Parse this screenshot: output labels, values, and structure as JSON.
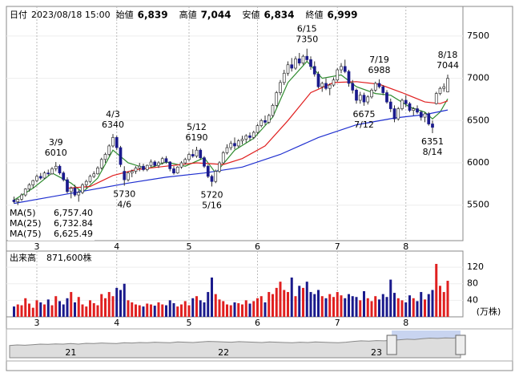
{
  "chart_data": {
    "type": "candlestick",
    "header": {
      "date_label": "日付",
      "date": "2023/08/18 15:00",
      "quotes": [
        {
          "name": "始値",
          "value": 6839,
          "value_label": "6,839",
          "color": "#000000"
        },
        {
          "name": "高値",
          "value": 7044,
          "value_label": "7,044",
          "color": "#e00000"
        },
        {
          "name": "安値",
          "value": 6834,
          "value_label": "6,834",
          "color": "#008000"
        },
        {
          "name": "終値",
          "value": 6999,
          "value_label": "6,999",
          "color": "#000000"
        }
      ]
    },
    "ylim": [
      5080,
      7850
    ],
    "yticks": [
      5500,
      6000,
      6500,
      7000,
      7500
    ],
    "xlim": [
      -2,
      118
    ],
    "xticks": [
      {
        "value": 6,
        "label": "3"
      },
      {
        "value": 27,
        "label": "4"
      },
      {
        "value": 46,
        "label": "5"
      },
      {
        "value": 64,
        "label": "6"
      },
      {
        "value": 85,
        "label": "7"
      },
      {
        "value": 103,
        "label": "8"
      }
    ],
    "up_color": "#ffffff",
    "down_color": "#1a1a8c",
    "wick_color": "#333333",
    "candles": [
      [
        5560,
        5600,
        5520,
        5540
      ],
      [
        5540,
        5580,
        5500,
        5570
      ],
      [
        5570,
        5640,
        5550,
        5620
      ],
      [
        5620,
        5700,
        5600,
        5690
      ],
      [
        5690,
        5760,
        5660,
        5740
      ],
      [
        5740,
        5800,
        5700,
        5790
      ],
      [
        5790,
        5860,
        5770,
        5840
      ],
      [
        5840,
        5880,
        5800,
        5820
      ],
      [
        5820,
        5900,
        5810,
        5880
      ],
      [
        5880,
        5920,
        5850,
        5870
      ],
      [
        5870,
        5950,
        5860,
        5930
      ],
      [
        5930,
        6010,
        5900,
        5960
      ],
      [
        5960,
        5980,
        5860,
        5880
      ],
      [
        5880,
        5900,
        5780,
        5800
      ],
      [
        5800,
        5830,
        5640,
        5660
      ],
      [
        5660,
        5720,
        5580,
        5700
      ],
      [
        5700,
        5740,
        5600,
        5620
      ],
      [
        5620,
        5680,
        5540,
        5650
      ],
      [
        5650,
        5760,
        5630,
        5740
      ],
      [
        5740,
        5800,
        5700,
        5780
      ],
      [
        5780,
        5860,
        5760,
        5840
      ],
      [
        5840,
        5900,
        5820,
        5870
      ],
      [
        5870,
        5960,
        5860,
        5940
      ],
      [
        5940,
        6060,
        5920,
        6040
      ],
      [
        6040,
        6120,
        6000,
        6100
      ],
      [
        6100,
        6220,
        6080,
        6200
      ],
      [
        6200,
        6340,
        6180,
        6300
      ],
      [
        6300,
        6320,
        6150,
        6180
      ],
      [
        6180,
        6200,
        5950,
        5980
      ],
      [
        5900,
        5960,
        5730,
        5800
      ],
      [
        5800,
        5900,
        5780,
        5880
      ],
      [
        5880,
        5920,
        5830,
        5900
      ],
      [
        5900,
        5960,
        5870,
        5940
      ],
      [
        5940,
        6000,
        5900,
        5960
      ],
      [
        5960,
        5990,
        5900,
        5920
      ],
      [
        5920,
        5980,
        5900,
        5970
      ],
      [
        5970,
        6040,
        5950,
        6010
      ],
      [
        6010,
        6030,
        5950,
        5970
      ],
      [
        5970,
        6020,
        5940,
        6000
      ],
      [
        6000,
        6070,
        5980,
        6050
      ],
      [
        6050,
        6080,
        5990,
        6010
      ],
      [
        6010,
        6020,
        5900,
        5930
      ],
      [
        5930,
        5960,
        5860,
        5880
      ],
      [
        5880,
        5960,
        5870,
        5950
      ],
      [
        5950,
        6020,
        5930,
        6000
      ],
      [
        6000,
        6060,
        5980,
        6040
      ],
      [
        6040,
        6120,
        6020,
        6100
      ],
      [
        6100,
        6160,
        6060,
        6080
      ],
      [
        6080,
        6190,
        6060,
        6150
      ],
      [
        6150,
        6170,
        6040,
        6060
      ],
      [
        6060,
        6080,
        5940,
        5960
      ],
      [
        5960,
        5980,
        5820,
        5840
      ],
      [
        5840,
        5860,
        5720,
        5780
      ],
      [
        5780,
        5920,
        5760,
        5900
      ],
      [
        5900,
        6020,
        5880,
        6000
      ],
      [
        6000,
        6140,
        5990,
        6120
      ],
      [
        6120,
        6220,
        6100,
        6180
      ],
      [
        6180,
        6260,
        6150,
        6230
      ],
      [
        6230,
        6300,
        6160,
        6200
      ],
      [
        6200,
        6280,
        6180,
        6260
      ],
      [
        6260,
        6320,
        6220,
        6280
      ],
      [
        6280,
        6340,
        6240,
        6320
      ],
      [
        6320,
        6360,
        6260,
        6300
      ],
      [
        6300,
        6380,
        6280,
        6360
      ],
      [
        6360,
        6460,
        6340,
        6440
      ],
      [
        6440,
        6520,
        6420,
        6500
      ],
      [
        6500,
        6560,
        6450,
        6480
      ],
      [
        6480,
        6580,
        6460,
        6560
      ],
      [
        6560,
        6700,
        6540,
        6680
      ],
      [
        6680,
        6850,
        6660,
        6830
      ],
      [
        6830,
        6980,
        6800,
        6950
      ],
      [
        6950,
        7100,
        6920,
        7060
      ],
      [
        7060,
        7200,
        7030,
        7160
      ],
      [
        7160,
        7240,
        7080,
        7120
      ],
      [
        7120,
        7260,
        7100,
        7230
      ],
      [
        7230,
        7300,
        7150,
        7180
      ],
      [
        7180,
        7280,
        7160,
        7260
      ],
      [
        7260,
        7350,
        7200,
        7220
      ],
      [
        7220,
        7260,
        7100,
        7140
      ],
      [
        7140,
        7200,
        7020,
        7050
      ],
      [
        7050,
        7080,
        6880,
        6900
      ],
      [
        6900,
        6960,
        6840,
        6940
      ],
      [
        6940,
        7000,
        6860,
        6880
      ],
      [
        6880,
        6940,
        6800,
        6920
      ],
      [
        6920,
        7010,
        6900,
        6980
      ],
      [
        6980,
        7120,
        6960,
        7100
      ],
      [
        7100,
        7180,
        7060,
        7140
      ],
      [
        7140,
        7220,
        7060,
        7080
      ],
      [
        7080,
        7100,
        6900,
        6940
      ],
      [
        6940,
        6980,
        6820,
        6860
      ],
      [
        6860,
        6880,
        6700,
        6740
      ],
      [
        6740,
        6840,
        6700,
        6800
      ],
      [
        6800,
        6830,
        6675,
        6720
      ],
      [
        6720,
        6800,
        6690,
        6780
      ],
      [
        6780,
        6880,
        6760,
        6860
      ],
      [
        6860,
        6960,
        6840,
        6940
      ],
      [
        6940,
        6988,
        6880,
        6900
      ],
      [
        6900,
        6920,
        6800,
        6830
      ],
      [
        6830,
        6860,
        6700,
        6720
      ],
      [
        6720,
        6760,
        6600,
        6640
      ],
      [
        6640,
        6680,
        6480,
        6520
      ],
      [
        6520,
        6660,
        6500,
        6640
      ],
      [
        6640,
        6760,
        6620,
        6740
      ],
      [
        6740,
        6800,
        6660,
        6700
      ],
      [
        6700,
        6720,
        6600,
        6620
      ],
      [
        6620,
        6660,
        6560,
        6640
      ],
      [
        6640,
        6680,
        6580,
        6600
      ],
      [
        6600,
        6620,
        6500,
        6540
      ],
      [
        6540,
        6600,
        6480,
        6580
      ],
      [
        6580,
        6600,
        6440,
        6460
      ],
      [
        6460,
        6500,
        6351,
        6420
      ],
      [
        6700,
        6840,
        6690,
        6820
      ],
      [
        6820,
        6900,
        6800,
        6880
      ],
      [
        6880,
        6940,
        6840,
        6900
      ],
      [
        6839,
        7044,
        6834,
        6999
      ]
    ],
    "annotations": [
      {
        "index": 11,
        "date": "3/9",
        "price": 6010,
        "side": "above"
      },
      {
        "index": 26,
        "date": "4/3",
        "price": 6340,
        "side": "above"
      },
      {
        "index": 29,
        "date": "4/6",
        "price": 5730,
        "side": "below"
      },
      {
        "index": 48,
        "date": "5/12",
        "price": 6190,
        "side": "above"
      },
      {
        "index": 52,
        "date": "5/16",
        "price": 5720,
        "side": "below"
      },
      {
        "index": 77,
        "date": "6/15",
        "price": 7350,
        "side": "above"
      },
      {
        "index": 92,
        "date": "7/12",
        "price": 6675,
        "side": "below"
      },
      {
        "index": 96,
        "date": "7/19",
        "price": 6988,
        "side": "above"
      },
      {
        "index": 110,
        "date": "8/14",
        "price": 6351,
        "side": "below"
      },
      {
        "index": 114,
        "date": "8/18",
        "price": 7044,
        "side": "above"
      }
    ],
    "series": [
      {
        "name": "MA(5)",
        "color": "#2e8b2e",
        "value": 6757.4,
        "value_label": "6,757.40",
        "x": [
          0,
          5,
          10,
          15,
          18,
          22,
          26,
          30,
          35,
          40,
          45,
          50,
          53,
          58,
          63,
          68,
          72,
          77,
          81,
          86,
          90,
          95,
          99,
          104,
          108,
          110,
          112,
          114
        ],
        "values": [
          5560,
          5700,
          5880,
          5760,
          5650,
          5820,
          6150,
          6000,
          5930,
          6010,
          5960,
          6060,
          5880,
          6150,
          6290,
          6540,
          6950,
          7200,
          7000,
          7040,
          6900,
          6820,
          6800,
          6660,
          6600,
          6520,
          6600,
          6757
        ]
      },
      {
        "name": "MA(25)",
        "color": "#e02020",
        "value": 6732.84,
        "value_label": "6,732.84",
        "x": [
          14,
          20,
          26,
          32,
          40,
          48,
          55,
          60,
          66,
          72,
          78,
          84,
          90,
          96,
          102,
          108,
          112,
          114
        ],
        "values": [
          5700,
          5720,
          5850,
          5920,
          5960,
          6000,
          5980,
          6050,
          6200,
          6500,
          6830,
          6950,
          6960,
          6930,
          6830,
          6720,
          6700,
          6733
        ]
      },
      {
        "name": "MA(75)",
        "color": "#2030d0",
        "value": 6625.49,
        "value_label": "6,625.49",
        "x": [
          0,
          10,
          20,
          30,
          40,
          50,
          60,
          70,
          80,
          90,
          100,
          108,
          114
        ],
        "values": [
          5520,
          5600,
          5680,
          5760,
          5830,
          5880,
          5950,
          6100,
          6300,
          6450,
          6530,
          6570,
          6625
        ]
      }
    ],
    "volume": {
      "name": "出来高",
      "value": 871600,
      "value_label": "871,600株",
      "unit": "(万株)",
      "ylim": [
        0,
        159
      ],
      "yticks": [
        40,
        80,
        120
      ],
      "up_color": "#e02020",
      "down_color": "#1a1a8c",
      "values": [
        25,
        30,
        28,
        45,
        32,
        22,
        40,
        35,
        30,
        42,
        28,
        50,
        38,
        30,
        45,
        60,
        35,
        48,
        30,
        25,
        40,
        33,
        28,
        55,
        45,
        60,
        50,
        70,
        65,
        80,
        40,
        35,
        30,
        28,
        25,
        32,
        30,
        27,
        35,
        30,
        28,
        40,
        33,
        25,
        30,
        38,
        28,
        45,
        50,
        40,
        35,
        60,
        95,
        55,
        42,
        38,
        30,
        28,
        35,
        33,
        30,
        40,
        32,
        38,
        45,
        50,
        35,
        60,
        55,
        70,
        85,
        65,
        60,
        95,
        50,
        75,
        70,
        85,
        60,
        55,
        65,
        50,
        45,
        55,
        48,
        60,
        52,
        45,
        55,
        50,
        48,
        40,
        62,
        45,
        38,
        50,
        42,
        55,
        48,
        90,
        58,
        45,
        40,
        35,
        52,
        45,
        38,
        60,
        42,
        55,
        65,
        128,
        75,
        60,
        87.16
      ]
    },
    "navigator": {
      "ylim": [
        0,
        100
      ],
      "xticks": [
        {
          "value": 8,
          "label": "21"
        },
        {
          "value": 28,
          "label": "22"
        },
        {
          "value": 48,
          "label": "23"
        }
      ],
      "selection": [
        50,
        59
      ],
      "values": [
        45,
        47,
        46,
        48,
        50,
        49,
        51,
        50,
        52,
        50,
        53,
        52,
        54,
        53,
        52,
        55,
        54,
        56,
        55,
        57,
        56,
        55,
        58,
        57,
        56,
        58,
        60,
        59,
        58,
        57,
        59,
        58,
        57,
        56,
        58,
        57,
        56,
        55,
        57,
        56,
        58,
        57,
        56,
        55,
        57,
        60,
        62,
        61,
        63,
        62,
        64,
        66,
        68,
        67,
        70,
        72,
        71,
        73,
        72,
        74
      ]
    }
  }
}
